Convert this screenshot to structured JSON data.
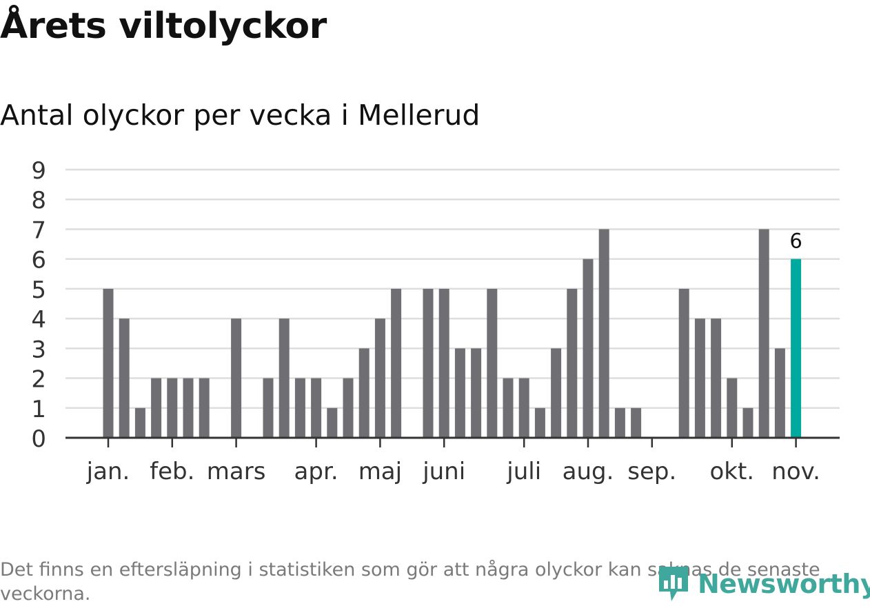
{
  "header": {
    "title": "Årets viltolyckor",
    "subtitle": "Antal olyckor per vecka i Mellerud"
  },
  "chart_data": {
    "type": "bar",
    "title": "Årets viltolyckor",
    "subtitle": "Antal olyckor per vecka i Mellerud",
    "xlabel": "",
    "ylabel": "",
    "ylim": [
      0,
      9
    ],
    "yticks": [
      0,
      1,
      2,
      3,
      4,
      5,
      6,
      7,
      8,
      9
    ],
    "grid": true,
    "week_count": 44,
    "values": [
      null,
      null,
      5,
      4,
      1,
      2,
      2,
      2,
      2,
      null,
      4,
      null,
      2,
      4,
      2,
      2,
      1,
      2,
      3,
      4,
      5,
      null,
      5,
      5,
      3,
      3,
      5,
      2,
      2,
      1,
      3,
      5,
      6,
      7,
      1,
      1,
      null,
      null,
      5,
      4,
      4,
      2,
      1,
      7,
      3,
      6
    ],
    "month_ticks": [
      {
        "label": "jan.",
        "index": 2
      },
      {
        "label": "feb.",
        "index": 6
      },
      {
        "label": "mars",
        "index": 10
      },
      {
        "label": "apr.",
        "index": 15
      },
      {
        "label": "maj",
        "index": 19
      },
      {
        "label": "juni",
        "index": 23
      },
      {
        "label": "juli",
        "index": 28
      },
      {
        "label": "aug.",
        "index": 32
      },
      {
        "label": "sep.",
        "index": 36
      },
      {
        "label": "okt.",
        "index": 41
      },
      {
        "label": "nov.",
        "index": 45
      }
    ],
    "highlight_index": 45,
    "highlight_label": "6",
    "bar_color": "#6f6e73",
    "highlight_color": "#00a99d",
    "grid_color": "#dddddd",
    "axis_color": "#333333"
  },
  "footer": {
    "note": "Det finns en eftersläpning i statistiken som gör att några olyckor kan saknas de senaste veckorna.",
    "brand": "Newsworthy",
    "brand_color": "#3fa79b"
  }
}
